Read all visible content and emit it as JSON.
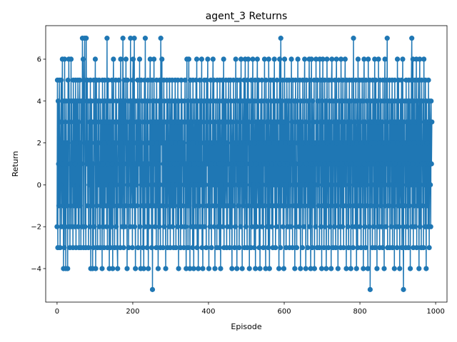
{
  "chart_data": {
    "type": "line",
    "title": "agent_3 Returns",
    "xlabel": "Episode",
    "ylabel": "Return",
    "xlim": [
      -30,
      1030
    ],
    "ylim": [
      -5.6,
      7.6
    ],
    "xticks": [
      0,
      200,
      400,
      600,
      800,
      1000
    ],
    "yticks": [
      -4,
      -2,
      0,
      2,
      4,
      6
    ],
    "grid": false,
    "marker": "circle",
    "colors": {
      "series": "#1f77b4"
    },
    "series": [
      {
        "x_start": 0,
        "x_step": 1,
        "values": [
          -2,
          5,
          -3,
          4,
          1,
          -1,
          5,
          2,
          -3,
          0,
          3,
          5,
          -2,
          1,
          6,
          -1,
          4,
          -4,
          2,
          -3,
          6,
          -2,
          3,
          -4,
          4,
          1,
          -1,
          2,
          -4,
          5,
          -2,
          6,
          3,
          4,
          -3,
          1,
          -1,
          6,
          -2,
          4,
          0,
          2,
          -3,
          5,
          -1,
          3,
          4,
          -2,
          1,
          5,
          -3,
          2,
          4,
          -1,
          0,
          5,
          -2,
          3,
          -3,
          4,
          5,
          -1,
          2,
          -3,
          4,
          1,
          -2,
          7,
          3,
          6,
          -3,
          4,
          5,
          7,
          -2,
          2,
          -3,
          7,
          1,
          4,
          5,
          -1,
          2,
          -3,
          4,
          0,
          3,
          -2,
          5,
          -4,
          2,
          4,
          -1,
          3,
          -4,
          1,
          -3,
          5,
          -2,
          4,
          2,
          6,
          -4,
          3,
          5,
          -1,
          2,
          -3,
          4,
          0,
          3,
          5,
          -2,
          1,
          -3,
          4,
          2,
          -1,
          3,
          -4,
          5,
          1,
          -2,
          4,
          -3,
          2,
          5,
          -1,
          3,
          0,
          4,
          -2,
          7,
          -3,
          1,
          5,
          -1,
          3,
          -4,
          2,
          4,
          -3,
          0,
          3,
          -2,
          5,
          1,
          -4,
          4,
          6,
          -1,
          2,
          -3,
          3,
          0,
          5,
          -2,
          4,
          1,
          -3,
          -4,
          3,
          2,
          5,
          -1,
          4,
          0,
          -3,
          6,
          2,
          -1,
          4,
          -2,
          3,
          7,
          0,
          -3,
          5,
          1,
          -2,
          4,
          2,
          6,
          -1,
          3,
          -4,
          5,
          0,
          2,
          -3,
          4,
          1,
          3,
          -2,
          7,
          -1,
          0,
          4,
          2,
          -3,
          5,
          6,
          -1,
          3,
          7,
          -2,
          1,
          -4,
          4,
          2,
          0,
          3,
          -1,
          5,
          -3,
          2,
          4,
          1,
          6,
          -2,
          3,
          -4,
          5,
          0,
          2,
          -1,
          4,
          -3,
          1,
          -4,
          3,
          5,
          -2,
          7,
          0,
          2,
          -1,
          4,
          -3,
          3,
          5,
          -4,
          1,
          -2,
          2,
          4,
          6,
          -1,
          3,
          0,
          -3,
          5,
          -5,
          2,
          4,
          -1,
          6,
          1,
          3,
          -2,
          0,
          4,
          -3,
          5,
          2,
          -1,
          3,
          -4,
          1,
          4,
          -2,
          5,
          0,
          -3,
          7,
          2,
          4,
          6,
          -1,
          3,
          -3,
          1,
          5,
          -2,
          4,
          0,
          2,
          -4,
          3,
          -1,
          5,
          1,
          -3,
          4,
          2,
          0,
          -2,
          5,
          3,
          -3,
          1,
          4,
          -1,
          2,
          5,
          -2,
          0,
          3,
          -3,
          4,
          1,
          -1,
          5,
          2,
          -3,
          4,
          0,
          3,
          -2,
          5,
          1,
          -4,
          4,
          -1,
          2,
          3,
          -3,
          0,
          5,
          -2,
          4,
          1,
          3,
          -1,
          2,
          -3,
          4,
          0,
          5,
          -2,
          1,
          -4,
          3,
          6,
          -1,
          4,
          -3,
          2,
          6,
          -1,
          3,
          -4,
          5,
          1,
          -2,
          4,
          0,
          3,
          -3,
          5,
          2,
          -4,
          1,
          4,
          -1,
          3,
          -2,
          5,
          0,
          6,
          -3,
          2,
          4,
          -4,
          1,
          3,
          -1,
          5,
          -2,
          4,
          0,
          2,
          6,
          -3,
          1,
          -4,
          4,
          3,
          -1,
          5,
          -2,
          2,
          0,
          4,
          -3,
          5,
          1,
          3,
          6,
          -1,
          2,
          -4,
          4,
          0,
          -2,
          3,
          5,
          1,
          -3,
          2,
          -1,
          4,
          6,
          0,
          5,
          -2,
          3,
          -4,
          1,
          4,
          -1,
          2,
          -3,
          5,
          0,
          3,
          -2,
          4,
          1,
          -3,
          5,
          2,
          -4,
          0,
          3,
          -1,
          4,
          5,
          -2,
          1,
          6,
          -3,
          2,
          4,
          -1,
          0,
          5,
          3,
          -3,
          2,
          -2,
          4,
          1,
          5,
          -1,
          0,
          -3,
          3,
          5,
          -2,
          4,
          2,
          -4,
          1,
          3,
          -1,
          5,
          0,
          2,
          -3,
          4,
          -2,
          6,
          1,
          3,
          -4,
          5,
          0,
          2,
          -1,
          4,
          -3,
          1,
          5,
          3,
          -2,
          6,
          0,
          2,
          -4,
          4,
          1,
          -1,
          3,
          5,
          -3,
          2,
          6,
          0,
          -2,
          4,
          1,
          -3,
          5,
          2,
          6,
          -1,
          3,
          -4,
          4,
          0,
          2,
          -3,
          5,
          1,
          -2,
          3,
          6,
          -1,
          4,
          0,
          -3,
          2,
          5,
          -4,
          1,
          3,
          -2,
          4,
          6,
          0,
          -1,
          5,
          2,
          -3,
          3,
          -4,
          1,
          4,
          -1,
          2,
          5,
          -2,
          0,
          3,
          -3,
          4,
          1,
          6,
          -1,
          2,
          -4,
          5,
          0,
          3,
          -2,
          4,
          1,
          -3,
          6,
          2,
          -4,
          0,
          3,
          5,
          -1,
          4,
          -2,
          1,
          3,
          -3,
          5,
          0,
          2,
          6,
          -1,
          4,
          -3,
          1,
          3,
          -2,
          5,
          0,
          4,
          -1,
          2,
          -4,
          3,
          6,
          1,
          -3,
          7,
          2,
          -1,
          4,
          0,
          5,
          -2,
          3,
          -4,
          1,
          6,
          -1,
          2,
          4,
          -3,
          0,
          5,
          3,
          -2,
          1,
          4,
          -1,
          5,
          -3,
          2,
          0,
          4,
          -2,
          6,
          1,
          3,
          -3,
          5,
          -1,
          2,
          0,
          4,
          -4,
          3,
          5,
          -2,
          1,
          -3,
          4,
          2,
          6,
          -1,
          0,
          3,
          -2,
          5,
          1,
          -4,
          4,
          2,
          -1,
          3,
          -3,
          5,
          0,
          2,
          -2,
          4,
          6,
          -1,
          3,
          -4,
          1,
          5,
          0,
          2,
          -3,
          4,
          -1,
          3,
          6,
          -2,
          5,
          1,
          -4,
          0,
          6,
          2,
          -3,
          4,
          1,
          -1,
          3,
          5,
          -4,
          2,
          0,
          -2,
          6,
          1,
          3,
          -3,
          5,
          0,
          4,
          -1,
          2,
          -3,
          6,
          1,
          3,
          -2,
          5,
          -4,
          4,
          0,
          6,
          -1,
          2,
          -3,
          3,
          5,
          -2,
          1,
          4,
          -4,
          0,
          6,
          2,
          -1,
          3,
          -3,
          5,
          1,
          4,
          -2,
          0,
          3,
          -4,
          5,
          6,
          -1,
          2,
          -3,
          4,
          1,
          3,
          -2,
          5,
          0,
          -3,
          4,
          6,
          2,
          -1,
          3,
          -4,
          1,
          5,
          -2,
          4,
          0,
          2,
          -3,
          6,
          3,
          -1,
          4,
          -2,
          5,
          1,
          -3,
          3,
          0,
          4,
          6,
          -1,
          2,
          -4,
          5,
          1,
          3,
          -2,
          4,
          -3,
          0,
          5,
          2,
          -1,
          4,
          -4,
          3,
          1,
          5,
          -2,
          2,
          -3,
          7,
          0,
          4,
          -1,
          3,
          -2,
          5,
          1,
          -4,
          2,
          4,
          -3,
          6,
          0,
          3,
          -1,
          5,
          -2,
          1,
          4,
          -3,
          2,
          0,
          5,
          -1,
          3,
          -4,
          4,
          6,
          1,
          -2,
          3,
          -3,
          5,
          0,
          2,
          -1,
          4,
          -4,
          6,
          1,
          3,
          -2,
          5,
          -5,
          0,
          4,
          2,
          -1,
          3,
          -3,
          5,
          1,
          4,
          -2,
          0,
          6,
          -3,
          2,
          5,
          -1,
          3,
          -4,
          4,
          1,
          -2,
          6,
          0,
          3,
          -3,
          5,
          2,
          -1,
          4,
          -2,
          1,
          3,
          -3,
          5,
          0,
          2,
          -4,
          4,
          6,
          -1,
          3,
          -2,
          5,
          1,
          7,
          -3,
          4,
          0,
          2,
          -1,
          5,
          -3,
          3,
          1,
          4,
          -2,
          0,
          5,
          -3,
          2,
          4,
          -1,
          3,
          -4,
          5,
          1,
          -2,
          3,
          0,
          4,
          -3,
          6,
          2,
          -1,
          5,
          -2,
          3,
          -4,
          1,
          4,
          0,
          -1,
          5,
          -3,
          2,
          6,
          -2,
          -5,
          3,
          1,
          4,
          -1,
          2,
          -3,
          5,
          0,
          3,
          -2,
          4,
          1,
          -3,
          5,
          2,
          -1,
          4,
          -4,
          3,
          0,
          5,
          7,
          -2,
          1,
          6,
          -3,
          2,
          4,
          -1,
          5,
          -2,
          3,
          0,
          6,
          -3,
          4,
          1,
          -1,
          5,
          2,
          -4,
          3,
          6,
          -2,
          0,
          4,
          -3,
          5,
          1,
          2,
          -1,
          4,
          -3,
          6,
          0,
          3,
          -2,
          5,
          1,
          -4,
          4,
          -1,
          2,
          3,
          -2,
          5,
          1,
          -3,
          4,
          3,
          0,
          -2,
          4,
          1,
          3
        ]
      }
    ]
  }
}
